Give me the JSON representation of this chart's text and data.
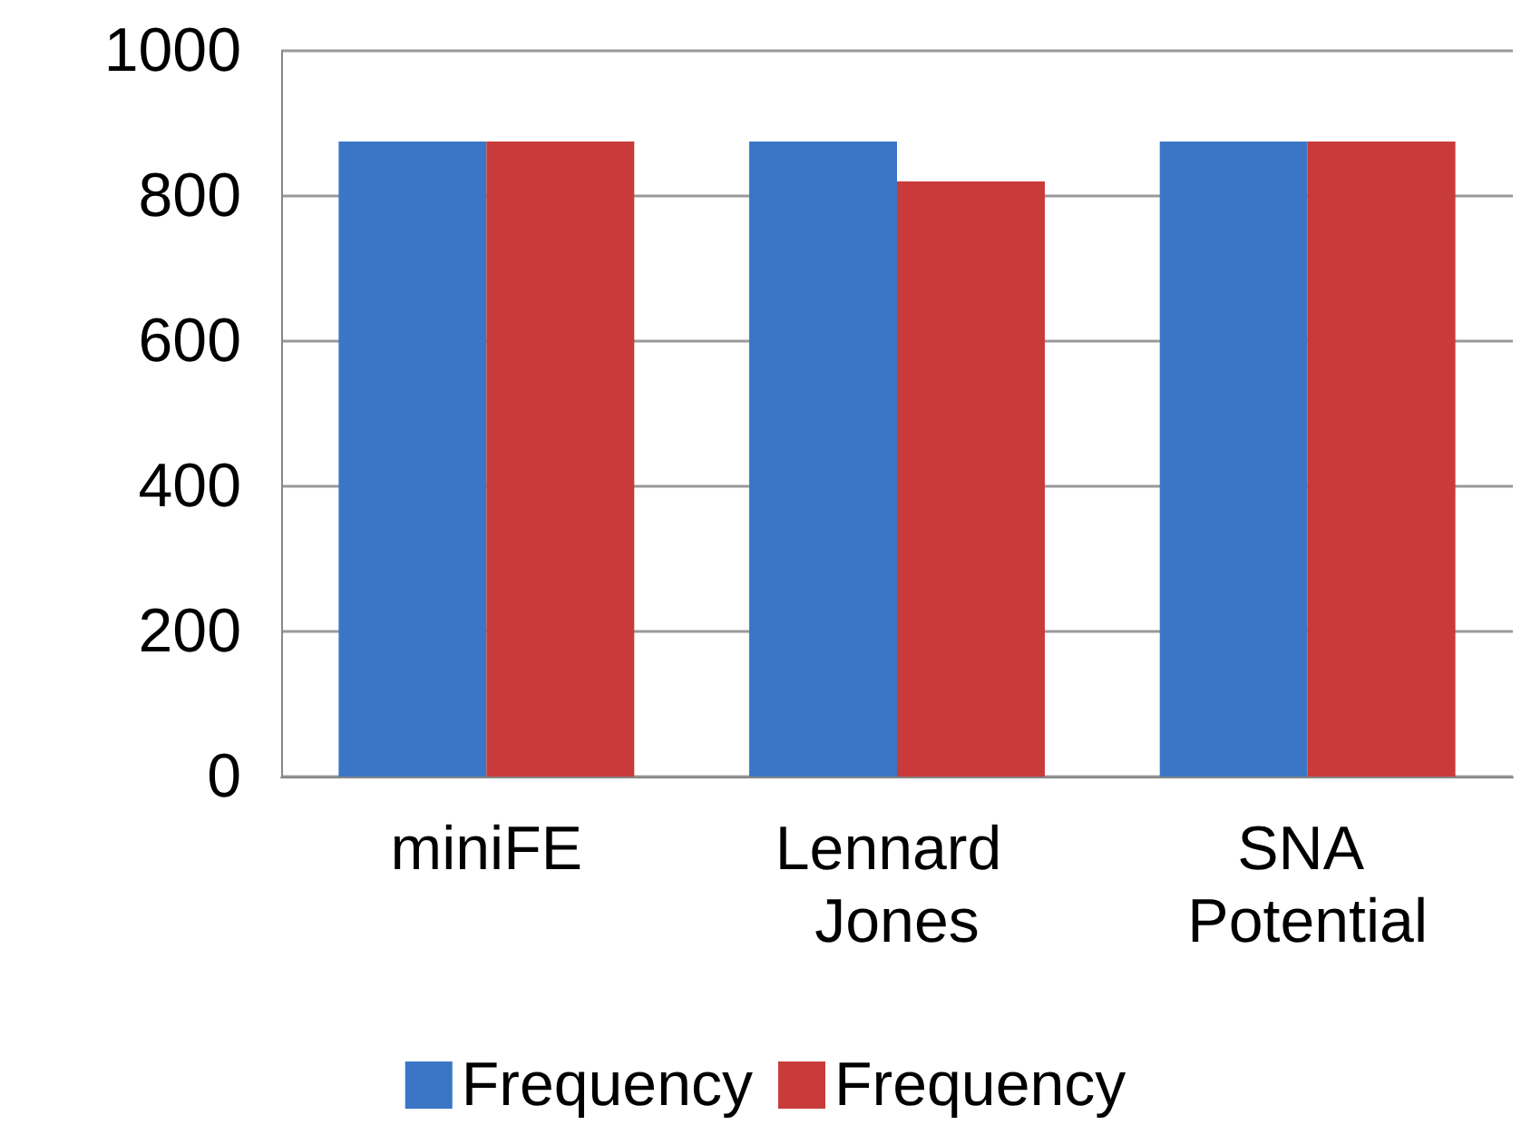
{
  "chart_data": {
    "type": "bar",
    "categories": [
      "miniFE",
      "Lennard Jones",
      "SNA Potential"
    ],
    "series": [
      {
        "name": "Frequency",
        "color": "#3b76c6",
        "values": [
          875,
          875,
          875
        ]
      },
      {
        "name": "Frequency",
        "color": "#c93a3b",
        "values": [
          875,
          820,
          875
        ]
      }
    ],
    "ylim": [
      0,
      1000
    ],
    "yticks": [
      0,
      200,
      400,
      600,
      800,
      1000
    ],
    "grid": "y",
    "legend": "bottom"
  }
}
